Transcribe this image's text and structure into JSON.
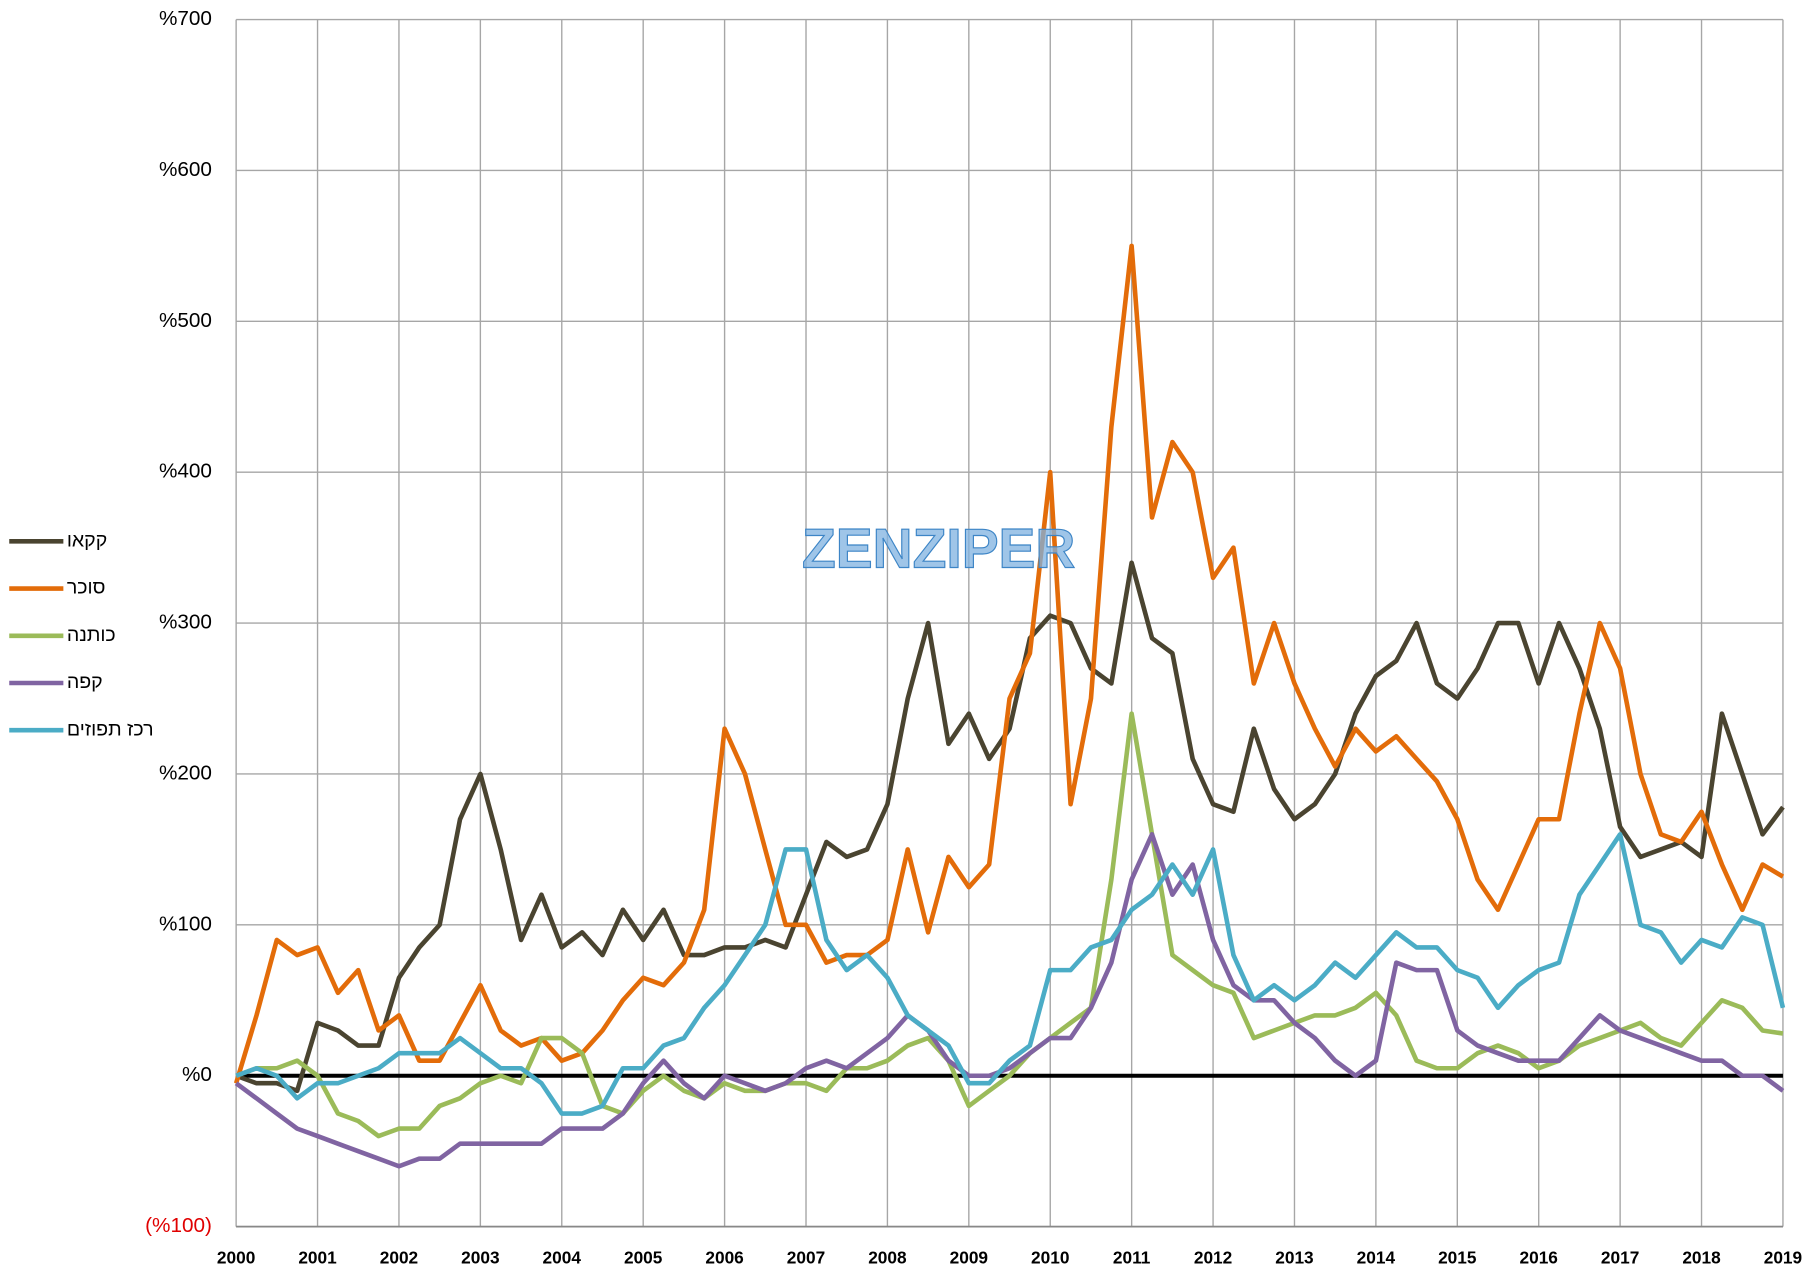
{
  "chart_data": {
    "type": "line",
    "watermark": "ZENZIPER",
    "xlim": [
      2000,
      2019
    ],
    "xticks": [
      2000,
      2001,
      2002,
      2003,
      2004,
      2005,
      2006,
      2007,
      2008,
      2009,
      2010,
      2011,
      2012,
      2013,
      2014,
      2015,
      2016,
      2017,
      2018,
      2019
    ],
    "ylim": [
      -100,
      700
    ],
    "yticks": [
      {
        "value": -100,
        "label": "(%100)"
      },
      {
        "value": 0,
        "label": "%0"
      },
      {
        "value": 100,
        "label": "%100"
      },
      {
        "value": 200,
        "label": "%200"
      },
      {
        "value": 300,
        "label": "%300"
      },
      {
        "value": 400,
        "label": "%400"
      },
      {
        "value": 500,
        "label": "%500"
      },
      {
        "value": 600,
        "label": "%600"
      },
      {
        "value": 700,
        "label": "%700"
      }
    ],
    "grid": true,
    "legend": "left",
    "x": [
      2000,
      2000.25,
      2000.5,
      2000.75,
      2001,
      2001.25,
      2001.5,
      2001.75,
      2002,
      2002.25,
      2002.5,
      2002.75,
      2003,
      2003.25,
      2003.5,
      2003.75,
      2004,
      2004.25,
      2004.5,
      2004.75,
      2005,
      2005.25,
      2005.5,
      2005.75,
      2006,
      2006.25,
      2006.5,
      2006.75,
      2007,
      2007.25,
      2007.5,
      2007.75,
      2008,
      2008.25,
      2008.5,
      2008.75,
      2009,
      2009.25,
      2009.5,
      2009.75,
      2010,
      2010.25,
      2010.5,
      2010.75,
      2011,
      2011.25,
      2011.5,
      2011.75,
      2012,
      2012.25,
      2012.5,
      2012.75,
      2013,
      2013.25,
      2013.5,
      2013.75,
      2014,
      2014.25,
      2014.5,
      2014.75,
      2015,
      2015.25,
      2015.5,
      2015.75,
      2016,
      2016.25,
      2016.5,
      2016.75,
      2017,
      2017.25,
      2017.5,
      2017.75,
      2018,
      2018.25,
      2018.5,
      2018.75,
      2019
    ],
    "series": [
      {
        "name": "קקאו",
        "color": "#4a4430",
        "values": [
          0,
          -5,
          -5,
          -10,
          35,
          30,
          20,
          20,
          65,
          85,
          100,
          170,
          200,
          150,
          90,
          120,
          85,
          95,
          80,
          110,
          90,
          110,
          80,
          80,
          85,
          85,
          90,
          85,
          120,
          155,
          145,
          150,
          180,
          250,
          300,
          220,
          240,
          210,
          230,
          290,
          305,
          300,
          270,
          260,
          340,
          290,
          280,
          210,
          180,
          175,
          230,
          190,
          170,
          180,
          200,
          240,
          265,
          275,
          300,
          260,
          250,
          270,
          300,
          300,
          260,
          300,
          270,
          230,
          165,
          145,
          150,
          155,
          145,
          240,
          200,
          160,
          178
        ]
      },
      {
        "name": "סוכר",
        "color": "#e36c09",
        "values": [
          -5,
          40,
          90,
          80,
          85,
          55,
          70,
          30,
          40,
          10,
          10,
          35,
          60,
          30,
          20,
          25,
          10,
          15,
          30,
          50,
          65,
          60,
          75,
          110,
          230,
          200,
          150,
          100,
          100,
          75,
          80,
          80,
          90,
          150,
          95,
          145,
          125,
          140,
          250,
          280,
          400,
          180,
          250,
          430,
          550,
          370,
          420,
          400,
          330,
          350,
          260,
          300,
          260,
          230,
          205,
          230,
          215,
          225,
          210,
          195,
          170,
          130,
          110,
          140,
          170,
          170,
          240,
          300,
          270,
          200,
          160,
          155,
          175,
          140,
          110,
          140,
          132
        ]
      },
      {
        "name": "כותנה",
        "color": "#9bbb59",
        "values": [
          0,
          5,
          5,
          10,
          0,
          -25,
          -30,
          -40,
          -35,
          -35,
          -20,
          -15,
          -5,
          0,
          -5,
          25,
          25,
          15,
          -20,
          -25,
          -10,
          0,
          -10,
          -15,
          -5,
          -10,
          -10,
          -5,
          -5,
          -10,
          5,
          5,
          10,
          20,
          25,
          10,
          -20,
          -10,
          0,
          15,
          25,
          35,
          45,
          130,
          240,
          160,
          80,
          70,
          60,
          55,
          25,
          30,
          35,
          40,
          40,
          45,
          55,
          40,
          10,
          5,
          5,
          15,
          20,
          15,
          5,
          10,
          20,
          25,
          30,
          35,
          25,
          20,
          35,
          50,
          45,
          30,
          28
        ]
      },
      {
        "name": "קפה",
        "color": "#8064a2",
        "values": [
          -5,
          -15,
          -25,
          -35,
          -40,
          -45,
          -50,
          -55,
          -60,
          -55,
          -55,
          -45,
          -45,
          -45,
          -45,
          -45,
          -35,
          -35,
          -35,
          -25,
          -5,
          10,
          -5,
          -15,
          0,
          -5,
          -10,
          -5,
          5,
          10,
          5,
          15,
          25,
          40,
          30,
          10,
          0,
          0,
          5,
          15,
          25,
          25,
          45,
          75,
          130,
          160,
          120,
          140,
          90,
          60,
          50,
          50,
          35,
          25,
          10,
          0,
          10,
          75,
          70,
          70,
          30,
          20,
          15,
          10,
          10,
          10,
          25,
          40,
          30,
          25,
          20,
          15,
          10,
          10,
          0,
          0,
          -10
        ]
      },
      {
        "name": "רכז תפוזים",
        "color": "#4bacc6",
        "values": [
          0,
          5,
          0,
          -15,
          -5,
          -5,
          0,
          5,
          15,
          15,
          15,
          25,
          15,
          5,
          5,
          -5,
          -25,
          -25,
          -20,
          5,
          5,
          20,
          25,
          45,
          60,
          80,
          100,
          150,
          150,
          90,
          70,
          80,
          65,
          40,
          30,
          20,
          -5,
          -5,
          10,
          20,
          70,
          70,
          85,
          90,
          110,
          120,
          140,
          120,
          150,
          80,
          50,
          60,
          50,
          60,
          75,
          65,
          80,
          95,
          85,
          85,
          70,
          65,
          45,
          60,
          70,
          75,
          120,
          140,
          160,
          100,
          95,
          75,
          90,
          85,
          105,
          100,
          45
        ]
      }
    ]
  }
}
